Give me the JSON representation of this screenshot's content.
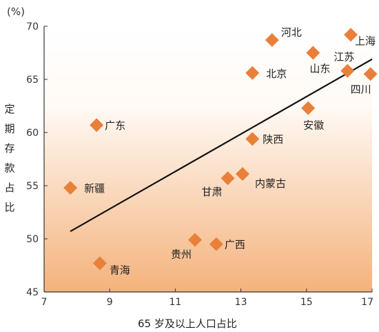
{
  "chart_data": {
    "type": "scatter",
    "title": "",
    "xlabel": "65 岁及以上人口占比",
    "ylabel": "定期存款占比",
    "y_unit": "(%)",
    "xlim": [
      7,
      17
    ],
    "ylim": [
      45,
      70
    ],
    "x_ticks": [
      7,
      9,
      11,
      13,
      15,
      17
    ],
    "y_ticks": [
      45,
      50,
      55,
      60,
      65,
      70
    ],
    "grid": false,
    "gradient_colors": [
      "#ffffff",
      "#f4b27c"
    ],
    "marker_color": "#e9803a",
    "line_color": "#111111",
    "points": [
      {
        "name": "河北",
        "x": 13.95,
        "y": 68.7
      },
      {
        "name": "上海",
        "x": 16.35,
        "y": 69.2
      },
      {
        "name": "山东",
        "x": 15.2,
        "y": 67.5
      },
      {
        "name": "江苏",
        "x": 16.25,
        "y": 65.8
      },
      {
        "name": "北京",
        "x": 13.35,
        "y": 65.6
      },
      {
        "name": "四川",
        "x": 16.95,
        "y": 65.5
      },
      {
        "name": "安徽",
        "x": 15.05,
        "y": 62.3
      },
      {
        "name": "广东",
        "x": 8.6,
        "y": 60.7
      },
      {
        "name": "陕西",
        "x": 13.35,
        "y": 59.4
      },
      {
        "name": "内蒙古",
        "x": 13.05,
        "y": 56.1
      },
      {
        "name": "甘肃",
        "x": 12.6,
        "y": 55.7
      },
      {
        "name": "新疆",
        "x": 7.8,
        "y": 54.8
      },
      {
        "name": "贵州",
        "x": 11.6,
        "y": 49.9
      },
      {
        "name": "广西",
        "x": 12.25,
        "y": 49.5
      },
      {
        "name": "青海",
        "x": 8.7,
        "y": 47.7
      }
    ],
    "trendline": {
      "x": [
        7.8,
        17.0
      ],
      "y": [
        50.7,
        66.9
      ]
    }
  }
}
